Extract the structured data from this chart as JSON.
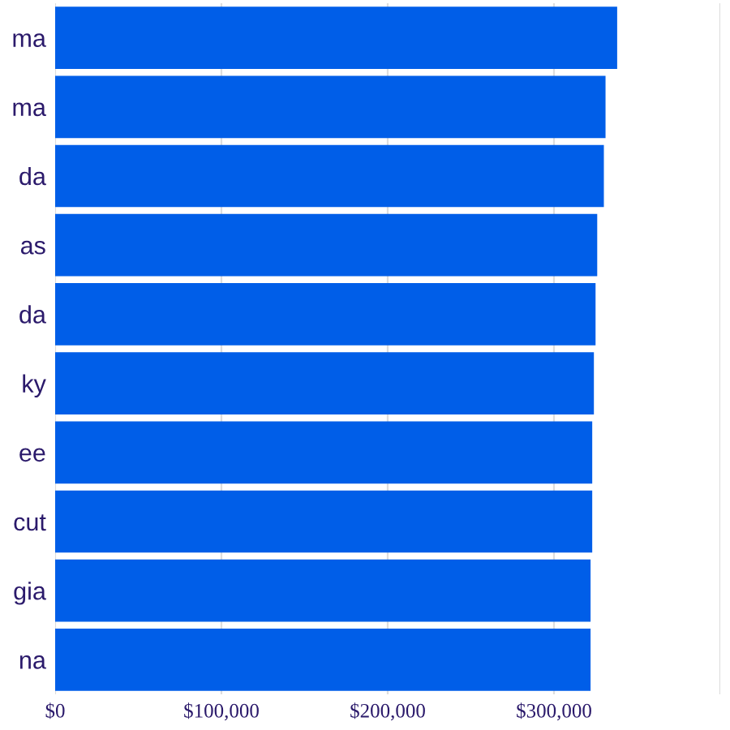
{
  "chart_data": {
    "type": "bar",
    "orientation": "horizontal",
    "categories": [
      "ma",
      "ma",
      "da",
      "as",
      "da",
      "ky",
      "ee",
      "cut",
      "gia",
      "na"
    ],
    "values": [
      338000,
      331000,
      330000,
      326000,
      325000,
      324000,
      323000,
      323000,
      322000,
      322000
    ],
    "color": "#005ee8",
    "xlim": [
      0,
      400000
    ],
    "xticks": [
      {
        "value": 0,
        "label": "$0"
      },
      {
        "value": 100000,
        "label": "$100,000"
      },
      {
        "value": 200000,
        "label": "$200,000"
      },
      {
        "value": 300000,
        "label": "$300,000"
      },
      {
        "value": 400000,
        "label": null
      }
    ],
    "grid": "x",
    "legend": false
  }
}
